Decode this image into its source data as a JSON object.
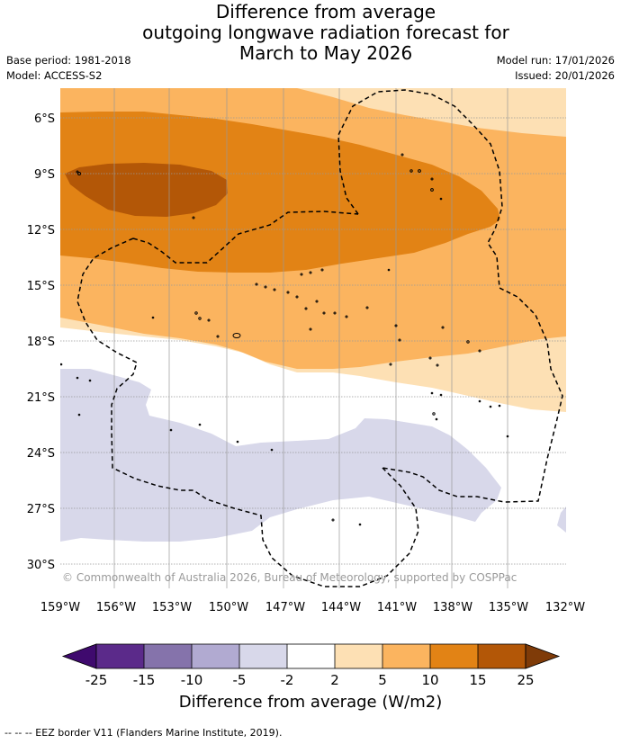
{
  "title": {
    "line1": "Difference from average",
    "line2": "outgoing longwave radiation forecast for",
    "line3": "March to May 2026"
  },
  "meta": {
    "base_period": "Base period: 1981-2018",
    "model": "Model: ACCESS-S2",
    "model_run": "Model run: 17/01/2026",
    "issued": "Issued: 20/01/2026"
  },
  "map": {
    "latitude_labels": [
      "6°S",
      "9°S",
      "12°S",
      "15°S",
      "18°S",
      "21°S",
      "24°S",
      "27°S",
      "30°S"
    ],
    "longitude_labels": [
      "159°W",
      "156°W",
      "153°W",
      "150°W",
      "147°W",
      "144°W",
      "141°W",
      "138°W",
      "135°W",
      "132°W"
    ],
    "copyright": "© Commonwealth of Australia 2026, Bureau of Meteorology, supported by COSPPac"
  },
  "colorbar": {
    "labels": [
      "-25",
      "-15",
      "-10",
      "-5",
      "-2",
      "2",
      "5",
      "10",
      "15",
      "25"
    ],
    "colors": [
      "#3f0a6e",
      "#5b2a8a",
      "#8573ab",
      "#b1aad1",
      "#d8d8ea",
      "#ffffff",
      "#fde0b4",
      "#fbb45f",
      "#e28315",
      "#b35707",
      "#7f3b08"
    ],
    "title": "Difference from average (W/m2)"
  },
  "footer": {
    "legend_text": "--  --  -- EEZ border V11 (Flanders Marine Institute, 2019)."
  }
}
